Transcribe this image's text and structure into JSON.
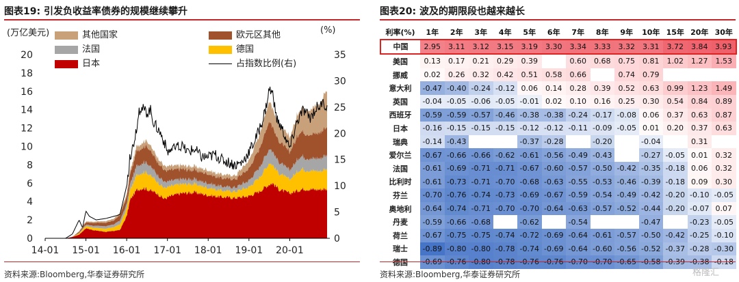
{
  "left_panel": {
    "title": "图表19:  引发负收益率债券的规模继续攀升",
    "left_unit": "(万亿美元)",
    "right_unit": "(%)",
    "source": "资料来源:Bloomberg,华泰证券研究所"
  },
  "right_panel": {
    "title": "图表20:  波及的期限段也越来越长",
    "source": "资料来源:Bloomberg,华泰证券研究所"
  },
  "watermark": "格隆汇",
  "colors": {
    "japan": "#c00000",
    "germany": "#ffc000",
    "france": "#a6a6a6",
    "euro_other": "#a0522d",
    "other": "#c8a07a",
    "ratio_line": "#000000",
    "accent": "#c0262a"
  },
  "chart_data": [
    {
      "type": "area",
      "stacked": true,
      "x_ticks": [
        "14-01",
        "15-01",
        "16-01",
        "17-01",
        "18-01",
        "19-01",
        "20-01"
      ],
      "x_tick_pos": [
        0,
        12,
        24,
        36,
        48,
        60,
        72
      ],
      "n_months": 84,
      "ylim": [
        0,
        20
      ],
      "y_ticks": [
        0,
        2,
        4,
        6,
        8,
        10,
        12,
        14,
        16,
        18,
        20
      ],
      "y2lim": [
        0,
        35
      ],
      "y2_ticks": [
        0,
        5,
        10,
        15,
        20,
        25,
        30,
        35
      ],
      "grid": false,
      "legend_position": "top",
      "series": [
        {
          "name": "日本",
          "color_key": "japan",
          "points": [
            [
              0,
              0
            ],
            [
              6,
              0
            ],
            [
              8,
              0.15
            ],
            [
              10,
              0.4
            ],
            [
              12,
              1.1
            ],
            [
              14,
              0.9
            ],
            [
              18,
              0.7
            ],
            [
              22,
              0.9
            ],
            [
              24,
              2.4
            ],
            [
              25,
              4.2
            ],
            [
              27,
              5.3
            ],
            [
              29,
              5.5
            ],
            [
              31,
              5.2
            ],
            [
              33,
              4.9
            ],
            [
              35,
              4.3
            ],
            [
              37,
              4.6
            ],
            [
              40,
              4.9
            ],
            [
              44,
              5.0
            ],
            [
              48,
              4.7
            ],
            [
              52,
              4.5
            ],
            [
              56,
              4.4
            ],
            [
              60,
              4.6
            ],
            [
              63,
              5.1
            ],
            [
              66,
              5.9
            ],
            [
              67,
              6.0
            ],
            [
              69,
              5.3
            ],
            [
              72,
              4.9
            ],
            [
              76,
              5.4
            ],
            [
              80,
              5.3
            ],
            [
              83,
              5.4
            ]
          ]
        },
        {
          "name": "德国",
          "color_key": "germany",
          "points": [
            [
              0,
              0
            ],
            [
              8,
              0
            ],
            [
              12,
              0.25
            ],
            [
              16,
              0.3
            ],
            [
              20,
              0.4
            ],
            [
              24,
              0.8
            ],
            [
              27,
              1.6
            ],
            [
              30,
              1.8
            ],
            [
              33,
              1.3
            ],
            [
              36,
              1.1
            ],
            [
              40,
              1.0
            ],
            [
              44,
              0.9
            ],
            [
              48,
              0.8
            ],
            [
              52,
              0.7
            ],
            [
              56,
              0.7
            ],
            [
              60,
              1.0
            ],
            [
              63,
              1.5
            ],
            [
              66,
              2.3
            ],
            [
              68,
              1.8
            ],
            [
              72,
              1.5
            ],
            [
              75,
              2.2
            ],
            [
              78,
              2.0
            ],
            [
              81,
              2.0
            ],
            [
              83,
              2.2
            ]
          ]
        },
        {
          "name": "法国",
          "color_key": "france",
          "points": [
            [
              0,
              0
            ],
            [
              8,
              0
            ],
            [
              12,
              0.15
            ],
            [
              16,
              0.25
            ],
            [
              20,
              0.3
            ],
            [
              24,
              0.5
            ],
            [
              27,
              1.0
            ],
            [
              30,
              1.1
            ],
            [
              33,
              0.8
            ],
            [
              36,
              0.6
            ],
            [
              40,
              0.55
            ],
            [
              44,
              0.5
            ],
            [
              48,
              0.5
            ],
            [
              52,
              0.45
            ],
            [
              56,
              0.45
            ],
            [
              60,
              0.7
            ],
            [
              63,
              1.1
            ],
            [
              66,
              1.6
            ],
            [
              68,
              1.3
            ],
            [
              72,
              1.0
            ],
            [
              75,
              1.4
            ],
            [
              78,
              1.3
            ],
            [
              81,
              1.4
            ],
            [
              83,
              1.5
            ]
          ]
        },
        {
          "name": "欧元区其他",
          "color_key": "euro_other",
          "points": [
            [
              0,
              0
            ],
            [
              8,
              0
            ],
            [
              12,
              0.25
            ],
            [
              16,
              0.35
            ],
            [
              20,
              0.4
            ],
            [
              24,
              0.8
            ],
            [
              27,
              1.6
            ],
            [
              30,
              1.8
            ],
            [
              33,
              1.4
            ],
            [
              36,
              1.2
            ],
            [
              40,
              1.1
            ],
            [
              44,
              1.0
            ],
            [
              48,
              1.0
            ],
            [
              52,
              0.9
            ],
            [
              56,
              0.9
            ],
            [
              60,
              1.3
            ],
            [
              63,
              2.0
            ],
            [
              66,
              3.0
            ],
            [
              68,
              2.4
            ],
            [
              72,
              2.0
            ],
            [
              75,
              2.7
            ],
            [
              78,
              2.6
            ],
            [
              81,
              2.8
            ],
            [
              83,
              3.0
            ]
          ]
        },
        {
          "name": "其他国家",
          "color_key": "other",
          "points": [
            [
              0,
              0
            ],
            [
              8,
              0
            ],
            [
              12,
              0.1
            ],
            [
              16,
              0.15
            ],
            [
              20,
              0.2
            ],
            [
              24,
              0.3
            ],
            [
              27,
              0.5
            ],
            [
              30,
              0.6
            ],
            [
              33,
              0.5
            ],
            [
              36,
              0.45
            ],
            [
              40,
              0.4
            ],
            [
              44,
              0.4
            ],
            [
              48,
              0.4
            ],
            [
              52,
              0.4
            ],
            [
              56,
              0.4
            ],
            [
              60,
              0.9
            ],
            [
              63,
              1.5
            ],
            [
              66,
              2.2
            ],
            [
              68,
              1.8
            ],
            [
              72,
              1.6
            ],
            [
              75,
              2.5
            ],
            [
              78,
              2.7
            ],
            [
              81,
              3.2
            ],
            [
              83,
              4.0
            ]
          ]
        }
      ],
      "line": {
        "name": "占指数比例(右)",
        "color_key": "ratio_line",
        "axis": "right",
        "points": [
          [
            0,
            0
          ],
          [
            6,
            0
          ],
          [
            8,
            0.8
          ],
          [
            10,
            3.5
          ],
          [
            11,
            2.0
          ],
          [
            12,
            5.2
          ],
          [
            13,
            4.2
          ],
          [
            15,
            3.5
          ],
          [
            18,
            3.8
          ],
          [
            22,
            4.5
          ],
          [
            24,
            10
          ],
          [
            25,
            15.5
          ],
          [
            26,
            18
          ],
          [
            27,
            21.5
          ],
          [
            28,
            25
          ],
          [
            29,
            24.5
          ],
          [
            30,
            24
          ],
          [
            31,
            24.5
          ],
          [
            32,
            22
          ],
          [
            33,
            21
          ],
          [
            34,
            20
          ],
          [
            35,
            18.5
          ],
          [
            36,
            16.5
          ],
          [
            38,
            17
          ],
          [
            40,
            17.5
          ],
          [
            42,
            16.5
          ],
          [
            44,
            17
          ],
          [
            46,
            15.5
          ],
          [
            48,
            15.5
          ],
          [
            50,
            16
          ],
          [
            52,
            15
          ],
          [
            54,
            14.5
          ],
          [
            56,
            14
          ],
          [
            58,
            14.5
          ],
          [
            60,
            16.5
          ],
          [
            62,
            19
          ],
          [
            64,
            22.5
          ],
          [
            65,
            25
          ],
          [
            66,
            28.5
          ],
          [
            67,
            27.5
          ],
          [
            68,
            23
          ],
          [
            70,
            20.5
          ],
          [
            72,
            17
          ],
          [
            74,
            22
          ],
          [
            76,
            24.5
          ],
          [
            78,
            23
          ],
          [
            80,
            25
          ],
          [
            82,
            25.5
          ],
          [
            83,
            25
          ]
        ]
      }
    },
    {
      "type": "table",
      "corner": "利率(%)",
      "columns": [
        "1年",
        "2年",
        "3年",
        "4年",
        "5年",
        "6年",
        "7年",
        "8年",
        "9年",
        "10年",
        "15年",
        "20年",
        "30年"
      ],
      "highlight_row": 0,
      "rows": [
        {
          "label": "中国",
          "values": [
            "2.95",
            "3.11",
            "3.12",
            "3.15",
            "3.19",
            "3.30",
            "3.34",
            "3.33",
            "3.32",
            "3.31",
            "3.72",
            "3.84",
            "3.93"
          ]
        },
        {
          "label": "美国",
          "values": [
            "0.13",
            "0.17",
            "0.21",
            "0.29",
            "0.39",
            "",
            "0.60",
            "0.68",
            "0.75",
            "0.81",
            "1.02",
            "1.27",
            "1.53"
          ]
        },
        {
          "label": "挪威",
          "values": [
            "0.02",
            "0.26",
            "0.32",
            "0.42",
            "0.51",
            "0.58",
            "0.66",
            "",
            "0.74",
            "0.79",
            "",
            "",
            ""
          ]
        },
        {
          "label": "意大利",
          "values": [
            "-0.47",
            "-0.40",
            "-0.24",
            "-0.12",
            "0.06",
            "0.14",
            "0.28",
            "0.39",
            "0.52",
            "0.63",
            "0.99",
            "1.23",
            "1.49"
          ]
        },
        {
          "label": "英国",
          "values": [
            "-0.04",
            "-0.05",
            "-0.06",
            "-0.05",
            "-0.01",
            "0.02",
            "0.10",
            "0.16",
            "0.25",
            "0.30",
            "0.54",
            "0.84",
            "0.89"
          ]
        },
        {
          "label": "西班牙",
          "values": [
            "-0.59",
            "-0.59",
            "-0.57",
            "-0.46",
            "-0.38",
            "-0.38",
            "-0.24",
            "-0.17",
            "-0.08",
            "0.06",
            "0.37",
            "0.63",
            "0.87"
          ]
        },
        {
          "label": "日本",
          "values": [
            "-0.16",
            "-0.15",
            "-0.15",
            "-0.15",
            "-0.12",
            "-0.12",
            "-0.11",
            "-0.09",
            "-0.05",
            "0.01",
            "0.20",
            "0.37",
            "0.63"
          ]
        },
        {
          "label": "瑞典",
          "values": [
            "-0.14",
            "-0.43",
            "",
            "",
            "-0.37",
            "-0.28",
            "",
            "-0.20",
            "",
            "-0.04",
            "",
            "0.31",
            ""
          ]
        },
        {
          "label": "爱尔兰",
          "values": [
            "-0.67",
            "-0.66",
            "-0.66",
            "-0.62",
            "-0.61",
            "-0.56",
            "-0.49",
            "-0.43",
            "",
            "-0.27",
            "-0.05",
            "0.01",
            "0.32"
          ]
        },
        {
          "label": "法国",
          "values": [
            "-0.61",
            "-0.69",
            "-0.71",
            "-0.71",
            "-0.67",
            "-0.60",
            "-0.57",
            "-0.50",
            "-0.42",
            "-0.35",
            "-0.18",
            "0.06",
            "0.32"
          ]
        },
        {
          "label": "比利时",
          "values": [
            "-0.61",
            "-0.73",
            "-0.71",
            "-0.70",
            "-0.68",
            "-0.63",
            "-0.55",
            "-0.53",
            "-0.46",
            "-0.39",
            "-0.18",
            "0.09",
            "0.30"
          ]
        },
        {
          "label": "芬兰",
          "values": [
            "-0.70",
            "-0.76",
            "-0.74",
            "-0.73",
            "-0.69",
            "-0.67",
            "-0.59",
            "-0.54",
            "-0.49",
            "-0.42",
            "-0.20",
            "-0.10",
            "-0.05"
          ]
        },
        {
          "label": "奥地利",
          "values": [
            "-0.64",
            "-0.74",
            "-0.71",
            "-0.70",
            "-0.70",
            "-0.64",
            "-0.63",
            "-0.57",
            "-0.52",
            "-0.44",
            "-0.20",
            "-0.07",
            "0.07"
          ]
        },
        {
          "label": "丹麦",
          "values": [
            "-0.59",
            "-0.66",
            "-0.68",
            "",
            "-0.62",
            "",
            "-0.54",
            "",
            "",
            "-0.47",
            "",
            "-0.23",
            "-0.05"
          ]
        },
        {
          "label": "荷兰",
          "values": [
            "-0.67",
            "-0.75",
            "-0.75",
            "-0.74",
            "-0.72",
            "-0.69",
            "-0.64",
            "-0.61",
            "-0.57",
            "-0.50",
            "-0.42",
            "-0.25",
            "-0.10"
          ]
        },
        {
          "label": "瑞士",
          "values": [
            "-0.89",
            "-0.80",
            "-0.80",
            "-0.78",
            "-0.74",
            "-0.69",
            "-0.64",
            "-0.60",
            "-0.56",
            "-0.52",
            "-0.37",
            "-0.28",
            "-0.30"
          ]
        },
        {
          "label": "德国",
          "values": [
            "-0.69",
            "-0.76",
            "-0.80",
            "-0.78",
            "-0.76",
            "-0.76",
            "-0.70",
            "-0.70",
            "-0.65",
            "-0.58",
            "-0.39",
            "-0.38",
            "-0.18"
          ]
        }
      ]
    }
  ]
}
